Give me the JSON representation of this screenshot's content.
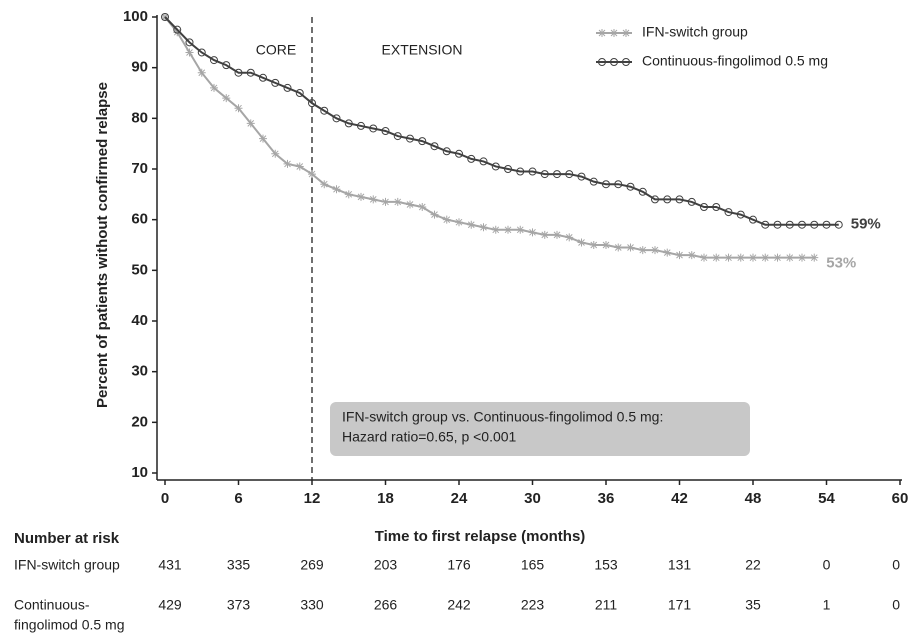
{
  "chart_data": {
    "type": "line",
    "y_label": "Percent of patients without confirmed relapse",
    "x_label": "Time to first relapse (months)",
    "xlim": [
      0,
      60
    ],
    "xticks": [
      0,
      6,
      12,
      18,
      24,
      30,
      36,
      42,
      48,
      54,
      60
    ],
    "ylim": [
      10,
      100
    ],
    "yticks": [
      10,
      20,
      30,
      40,
      50,
      60,
      70,
      80,
      90,
      100
    ],
    "legend": "top-right",
    "divider_x": 12,
    "period_labels": [
      "CORE",
      "EXTENSION"
    ],
    "note_lines": [
      "IFN-switch group vs. Continuous-fingolimod 0.5 mg:",
      "Hazard ratio=0.65, p <0.001"
    ],
    "x": [
      0,
      1,
      2,
      3,
      4,
      5,
      6,
      7,
      8,
      9,
      10,
      11,
      12,
      13,
      14,
      15,
      16,
      17,
      18,
      19,
      20,
      21,
      22,
      23,
      24,
      25,
      26,
      27,
      28,
      29,
      30,
      31,
      32,
      33,
      34,
      35,
      36,
      37,
      38,
      39,
      40,
      41,
      42,
      43,
      44,
      45,
      46,
      47,
      48,
      49,
      50,
      51,
      52,
      53,
      54,
      55
    ],
    "series": [
      {
        "name": "IFN-switch group",
        "color": "#a6a6a6",
        "marker": "star",
        "end_label": "53%",
        "values": [
          100,
          97,
          93,
          89,
          86,
          84,
          82,
          79,
          76,
          73,
          71,
          70.5,
          69,
          67,
          66,
          65,
          64.5,
          64,
          63.5,
          63.5,
          63,
          62.5,
          61,
          60,
          59.5,
          59,
          58.5,
          58,
          58,
          58,
          57.5,
          57,
          57,
          56.5,
          55.5,
          55,
          55,
          54.5,
          54.5,
          54,
          54,
          53.5,
          53,
          53,
          52.5,
          52.5,
          52.5,
          52.5,
          52.5,
          52.5,
          52.5,
          52.5,
          52.5,
          52.5,
          null,
          null
        ]
      },
      {
        "name": "Continuous-fingolimod 0.5 mg",
        "color": "#404040",
        "marker": "circle",
        "end_label": "59%",
        "values": [
          100,
          97.5,
          95,
          93,
          91.5,
          90.5,
          89,
          89,
          88,
          87,
          86,
          85,
          83,
          81.5,
          80,
          79,
          78.5,
          78,
          77.5,
          76.5,
          76,
          75.5,
          74.5,
          73.5,
          73,
          72,
          71.5,
          70.5,
          70,
          69.5,
          69.5,
          69,
          69,
          69,
          68.5,
          67.5,
          67,
          67,
          66.5,
          65.5,
          64,
          64,
          64,
          63.5,
          62.5,
          62.5,
          61.5,
          61,
          60,
          59,
          59,
          59,
          59,
          59,
          59,
          59
        ]
      }
    ],
    "risk_table": {
      "title": "Number at risk",
      "rows": [
        {
          "label_lines": [
            "IFN-switch group"
          ],
          "counts": [
            431,
            335,
            269,
            203,
            176,
            165,
            153,
            131,
            22,
            0,
            0
          ]
        },
        {
          "label_lines": [
            "Continuous-",
            "fingolimod 0.5 mg"
          ],
          "counts": [
            429,
            373,
            330,
            266,
            242,
            223,
            211,
            171,
            35,
            1,
            0
          ]
        }
      ]
    }
  }
}
